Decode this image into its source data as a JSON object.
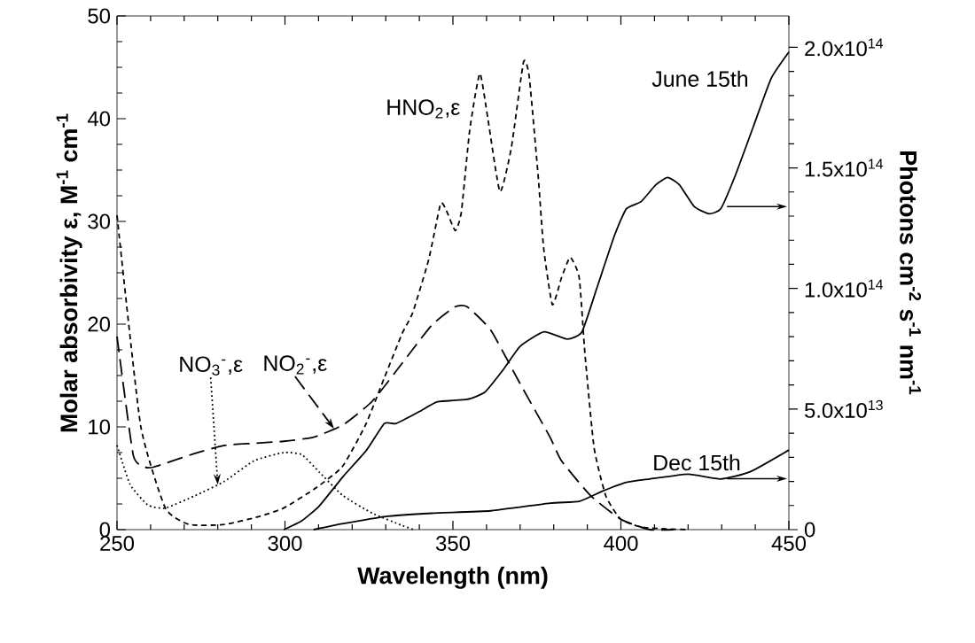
{
  "chart_data": {
    "type": "line",
    "xlabel": "Wavelength (nm)",
    "ylabel": "Molar absorbivity ε, M$^{-1}$ cm$^{-1}$",
    "y2label": "Photons cm$^{-2}$ s$^{-1}$ nm$^{-1}$",
    "xlim": [
      250,
      450
    ],
    "xticks": [
      250,
      300,
      350,
      400,
      450
    ],
    "ylim": [
      0,
      50
    ],
    "yticks": [
      0,
      10,
      20,
      30,
      40,
      50
    ],
    "y2lim": [
      0,
      213000000000000.0
    ],
    "y2ticks": [
      0,
      {
        "value": 50000000000000.0,
        "label": "5.0x10$^{13}$"
      },
      {
        "value": 100000000000000.0,
        "label": "1.0x10$^{14}$"
      },
      {
        "value": 150000000000000.0,
        "label": "1.5x10$^{14}$"
      },
      {
        "value": 200000000000000.0,
        "label": "2.0x10$^{14}$"
      }
    ],
    "series": [
      {
        "name": "NO$_{3}$$^{-}$,ε",
        "color": "#000000",
        "line_style": "dotted",
        "x": [
          250,
          253.9,
          259.2,
          264.4,
          273.2,
          282,
          290.8,
          299.6,
          305,
          310.2,
          317.3,
          326,
          334.9,
          338.4
        ],
        "values": [
          8.2,
          4.4,
          2.4,
          2.1,
          3.3,
          4.7,
          6.7,
          7.5,
          7.3,
          5.6,
          3.3,
          1.6,
          0.4,
          0
        ]
      },
      {
        "name": "NO$_{2}$$^{-}$,ε",
        "color": "#000000",
        "line_style": "long dashed",
        "x": [
          250,
          254.8,
          258.3,
          261,
          273,
          282,
          290.8,
          299.6,
          308.5,
          317.3,
          326,
          334.9,
          343.7,
          350.7,
          354.2,
          361.3,
          370,
          378.9,
          382.3,
          391,
          400,
          408.6,
          415.7
        ],
        "values": [
          18.8,
          7.3,
          6.1,
          6.1,
          7.4,
          8.2,
          8.4,
          8.6,
          9,
          10.2,
          12.5,
          16.2,
          19.9,
          21.7,
          21.7,
          19.4,
          14.2,
          9,
          6.7,
          3.3,
          1,
          0,
          0
        ]
      },
      {
        "name": "HNO$_{2}$,ε",
        "color": "#000000",
        "line_style": "dashed",
        "x": [
          250,
          257,
          264.4,
          271.5,
          282,
          292.6,
          299.6,
          308.5,
          317,
          324,
          329.6,
          334.9,
          338,
          342.8,
          346.3,
          348,
          350.7,
          352.5,
          355,
          358,
          360.4,
          364,
          367.4,
          371,
          372.7,
          375.4,
          377,
          379.6,
          382.3,
          384.9,
          387.6,
          389.3,
          392,
          395.5,
          400,
          407,
          420
        ],
        "values": [
          30.6,
          10.2,
          2.1,
          0.5,
          0.5,
          1.3,
          2.1,
          3.9,
          6.1,
          10.2,
          14.8,
          19.1,
          21.1,
          26.3,
          31.7,
          31.1,
          29.1,
          30.9,
          38.9,
          44.4,
          40,
          32.9,
          37.2,
          45.5,
          44.1,
          34.3,
          27.4,
          21.9,
          24.5,
          26.5,
          24.5,
          17.1,
          8,
          3.3,
          1,
          0.2,
          0
        ]
      },
      {
        "name": "June 15th",
        "color": "#000000",
        "line_style": "solid",
        "axis": "y2",
        "x": [
          299.6,
          305,
          310.2,
          317.3,
          324.3,
          329.6,
          333.1,
          340.1,
          345.4,
          354.2,
          359.5,
          364.8,
          370,
          377.1,
          384,
          388.4,
          392.8,
          398.1,
          401.6,
          406,
          410.4,
          413.9,
          417.4,
          421.8,
          426.2,
          429.7,
          434.1,
          439.4,
          444.7,
          450
        ],
        "values": [
          0,
          3700000000000.0,
          9800000000000.0,
          22000000000000.0,
          33000000000000.0,
          44000000000000.0,
          44000000000000.0,
          49000000000000.0,
          53000000000000.0,
          54000000000000.0,
          57000000000000.0,
          66000000000000.0,
          76000000000000.0,
          82000000000000.0,
          79000000000000.0,
          82000000000000.0,
          100000000000000.0,
          122000000000000.0,
          133000000000000.0,
          136000000000000.0,
          143000000000000.0,
          146000000000000.0,
          143000000000000.0,
          134000000000000.0,
          131000000000000.0,
          133000000000000.0,
          147000000000000.0,
          167000000000000.0,
          187000000000000.0,
          198000000000000.0
        ]
      },
      {
        "name": "Dec 15th",
        "color": "#000000",
        "line_style": "solid",
        "axis": "y2",
        "x": [
          308.5,
          317,
          329.6,
          343.7,
          361.3,
          378.9,
          387.6,
          394.6,
          401.6,
          408.6,
          420,
          429.7,
          438.5,
          450
        ],
        "values": [
          0,
          2400000000000.0,
          5400000000000.0,
          6800000000000.0,
          7800000000000.0,
          11000000000000.0,
          11700000000000.0,
          16000000000000.0,
          19600000000000.0,
          21000000000000.0,
          23000000000000.0,
          21000000000000.0,
          24000000000000.0,
          33000000000000.0
        ]
      }
    ]
  }
}
